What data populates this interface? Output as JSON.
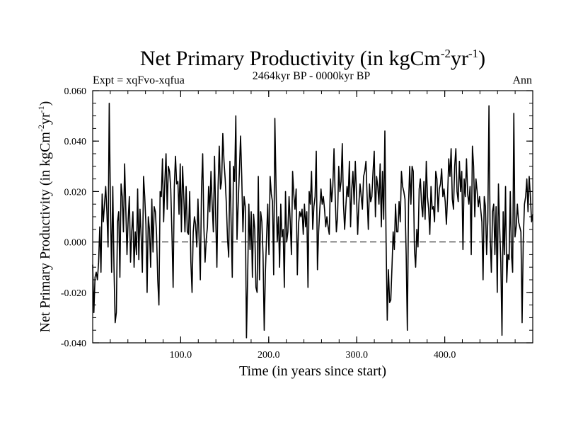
{
  "chart_data": {
    "type": "line",
    "title": {
      "main": "Net Primary Productivity (in kgCm",
      "sup1": "-2",
      "mid": "yr",
      "sup2": "-1",
      "end": ")"
    },
    "subtitle": {
      "left": "Expt = xqFvo-xqfua",
      "center": "2464kyr BP - 0000kyr BP",
      "right": "Ann"
    },
    "ylabel": {
      "main": "Net Primary Productivity (in kgCm",
      "sup1": "-2",
      "mid": "yr",
      "sup2": "-1",
      "end": ")"
    },
    "xlabel": "Time (in years since start)",
    "xlim": [
      0,
      500
    ],
    "ylim": [
      -0.04,
      0.06
    ],
    "xticks": [
      100,
      200,
      300,
      400
    ],
    "xtick_labels": [
      "100.0",
      "200.0",
      "300.0",
      "400.0"
    ],
    "yticks": [
      -0.04,
      -0.02,
      0.0,
      0.02,
      0.04,
      0.06
    ],
    "ytick_labels": [
      "-0.040",
      "-0.020",
      "0.000",
      "0.020",
      "0.040",
      "0.060"
    ],
    "zero_line": "dashed",
    "grid": false,
    "series": [
      {
        "name": "npp",
        "values": [
          -0.009,
          -0.028,
          -0.014,
          -0.012,
          -0.015,
          -0.008,
          0.006,
          -0.012,
          0.019,
          0.008,
          0.015,
          0.022,
          0.012,
          -0.002,
          0.055,
          0.015,
          -0.012,
          0.022,
          -0.01,
          -0.032,
          -0.028,
          0.008,
          0.012,
          -0.014,
          0.023,
          0.018,
          0.004,
          0.031,
          0.013,
          -0.005,
          0.009,
          0.018,
          -0.008,
          0.004,
          0.012,
          -0.01,
          0.004,
          -0.005,
          0.021,
          -0.007,
          0.013,
          0.002,
          -0.012,
          0.026,
          0.018,
          0.007,
          -0.02,
          0.01,
          0.005,
          -0.01,
          0.017,
          -0.004,
          0.014,
          0.012,
          0.003,
          -0.015,
          -0.025,
          0.02,
          0.018,
          0.033,
          0.008,
          0.024,
          0.035,
          0.013,
          0.03,
          0.028,
          0.021,
          0.003,
          -0.018,
          0.022,
          0.034,
          0.023,
          0.024,
          0.011,
          0.031,
          0.004,
          0.03,
          0.018,
          0.004,
          0.022,
          0.004,
          0.003,
          0.02,
          -0.008,
          -0.02,
          0.004,
          0.01,
          0.007,
          -0.002,
          0.017,
          0.001,
          -0.015,
          0.021,
          0.035,
          0.006,
          -0.008,
          0.001,
          0.006,
          0.022,
          0.012,
          0.028,
          0.015,
          0.004,
          0.034,
          0.01,
          -0.01,
          0.022,
          0.038,
          0.021,
          0.024,
          0.043,
          0.032,
          0.025,
          0.015,
          0.001,
          -0.006,
          0.032,
          0.008,
          -0.014,
          0.03,
          0.024,
          0.05,
          0.001,
          0.015,
          0.028,
          0.042,
          0.026,
          0.004,
          0.018,
          0.014,
          -0.038,
          -0.014,
          0.015,
          -0.003,
          0.012,
          -0.014,
          0.011,
          0.005,
          -0.018,
          -0.02,
          0.026,
          -0.015,
          0.012,
          0.008,
          -0.005,
          -0.035,
          -0.012,
          0.002,
          0.015,
          -0.005,
          0.026,
          0.019,
          0.016,
          -0.013,
          0.049,
          0.022,
          0.0,
          0.01,
          -0.01,
          0.015,
          0.002,
          0.005,
          -0.018,
          0.02,
          0.0,
          0.004,
          0.018,
          0.008,
          -0.005,
          0.028,
          0.019,
          0.013,
          0.021,
          -0.013,
          0.007,
          0.012,
          0.01,
          0.013,
          0.003,
          0.015,
          0.006,
          0.012,
          -0.018,
          0.02,
          0.015,
          0.028,
          0.005,
          0.014,
          0.018,
          0.036,
          -0.011,
          0.004,
          0.013,
          0.021,
          0.015,
          0.018,
          0.013,
          0.006,
          0.01,
          0.006,
          0.003,
          0.025,
          0.016,
          0.022,
          0.037,
          0.018,
          0.004,
          0.01,
          0.03,
          0.02,
          0.024,
          0.039,
          0.015,
          0.005,
          0.014,
          0.022,
          0.018,
          0.032,
          0.006,
          0.021,
          0.028,
          0.015,
          0.032,
          0.019,
          0.003,
          0.015,
          0.023,
          0.018,
          0.013,
          0.026,
          0.028,
          0.032,
          0.018,
          0.005,
          0.023,
          0.016,
          0.018,
          0.028,
          0.036,
          0.01,
          0.026,
          0.022,
          0.015,
          0.031,
          0.006,
          0.028,
          0.009,
          0.044,
          0.001,
          -0.031,
          -0.011,
          -0.024,
          -0.023,
          -0.01,
          0.004,
          -0.003,
          0.015,
          0.004,
          0.004,
          0.016,
          0.008,
          0.028,
          0.022,
          0.02,
          0.017,
          -0.005,
          -0.035,
          0.015,
          0.03,
          0.015,
          0.03,
          0.028,
          -0.003,
          -0.01,
          0.005,
          -0.002,
          0.021,
          0.025,
          0.015,
          0.01,
          0.024,
          0.009,
          0.032,
          0.018,
          0.013,
          0.003,
          0.022,
          0.013,
          0.014,
          0.008,
          0.028,
          0.025,
          0.012,
          0.021,
          0.023,
          0.029,
          0.018,
          0.021,
          0.016,
          0.007,
          0.018,
          0.033,
          0.026,
          0.037,
          0.017,
          0.013,
          0.03,
          0.037,
          0.02,
          0.016,
          0.032,
          0.02,
          0.028,
          -0.003,
          0.025,
          0.018,
          0.033,
          0.019,
          0.015,
          0.022,
          -0.005,
          0.038,
          0.03,
          0.01,
          0.025,
          0.02,
          0.014,
          0.018,
          0.013,
          0.008,
          -0.015,
          0.018,
          0.014,
          -0.005,
          0.008,
          0.054,
          0.002,
          -0.012,
          0.012,
          0.015,
          -0.005,
          0.014,
          -0.02,
          0.023,
          0.006,
          -0.008,
          -0.037,
          0.012,
          -0.005,
          0.022,
          -0.016,
          -0.005,
          -0.007,
          0.02,
          -0.005,
          -0.012,
          0.051,
          0.002,
          0.006,
          0.015,
          0.008,
          0.006,
          0.004,
          -0.032,
          0.001,
          0.015,
          0.018,
          0.025,
          0.012,
          0.026,
          0.018,
          0.008,
          0.011
        ]
      }
    ]
  }
}
